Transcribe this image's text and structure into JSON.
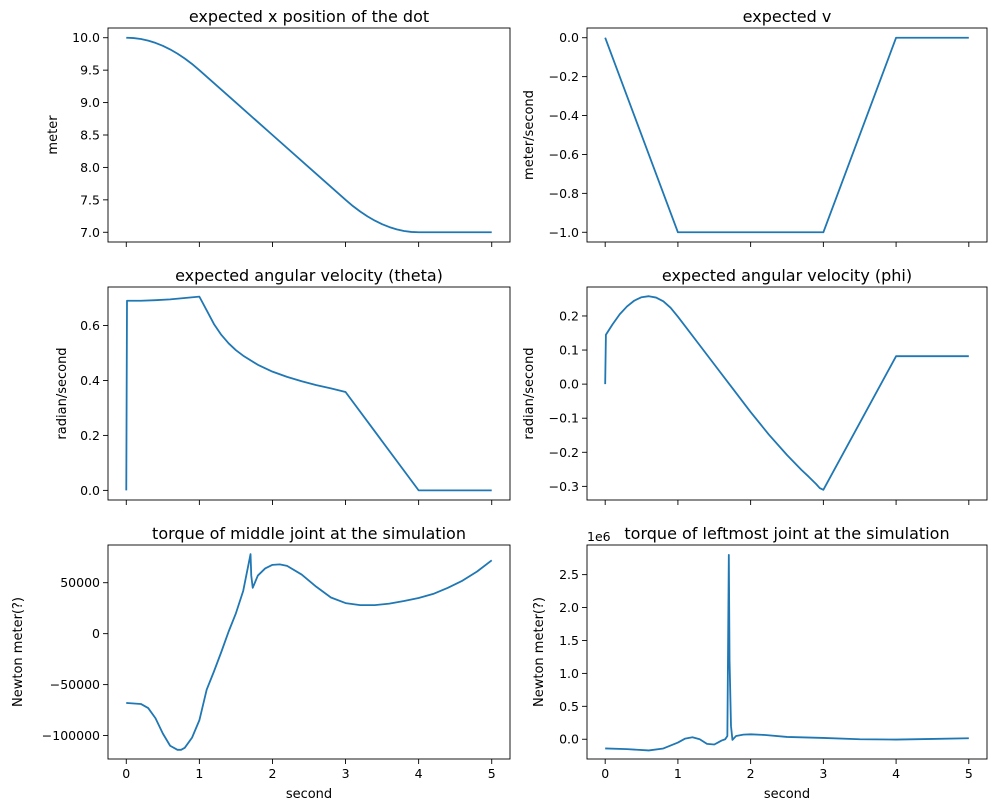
{
  "colors": {
    "series": "#1f77b4",
    "axes": "#000000",
    "background": "#ffffff"
  },
  "chart_data": [
    {
      "type": "line",
      "title": "expected x position of the dot",
      "xlabel": "",
      "ylabel": "meter",
      "xlim": [
        -0.25,
        5.25
      ],
      "ylim": [
        6.85,
        10.15
      ],
      "xticks": [
        0,
        1,
        2,
        3,
        4,
        5
      ],
      "xtick_labels_shown": false,
      "yticks": [
        7.0,
        7.5,
        8.0,
        8.5,
        9.0,
        9.5,
        10.0
      ],
      "ytick_labels": [
        "7.0",
        "7.5",
        "8.0",
        "8.5",
        "9.0",
        "9.5",
        "10.0"
      ],
      "grid": false,
      "series": [
        {
          "x": [
            0,
            0.1,
            0.2,
            0.3,
            0.4,
            0.5,
            0.6,
            0.7,
            0.8,
            0.9,
            1.0,
            1.5,
            2.0,
            2.5,
            3.0,
            3.1,
            3.2,
            3.3,
            3.4,
            3.5,
            3.6,
            3.7,
            3.8,
            3.9,
            4.0,
            4.5,
            5.0
          ],
          "y": [
            10.0,
            9.995,
            9.98,
            9.955,
            9.92,
            9.875,
            9.82,
            9.755,
            9.68,
            9.595,
            9.5,
            9.0,
            8.5,
            8.0,
            7.5,
            7.405,
            7.32,
            7.245,
            7.18,
            7.125,
            7.08,
            7.045,
            7.02,
            7.005,
            7.0,
            7.0,
            7.0
          ]
        }
      ]
    },
    {
      "type": "line",
      "title": "expected v",
      "xlabel": "",
      "ylabel": "meter/second",
      "xlim": [
        -0.25,
        5.25
      ],
      "ylim": [
        -1.05,
        0.05
      ],
      "xticks": [
        0,
        1,
        2,
        3,
        4,
        5
      ],
      "xtick_labels_shown": false,
      "yticks": [
        -1.0,
        -0.8,
        -0.6,
        -0.4,
        -0.2,
        0.0
      ],
      "ytick_labels": [
        "−1.0",
        "−0.8",
        "−0.6",
        "−0.4",
        "−0.2",
        "0.0"
      ],
      "grid": false,
      "series": [
        {
          "x": [
            0,
            1,
            3,
            4,
            5
          ],
          "y": [
            0.0,
            -1.0,
            -1.0,
            0.0,
            0.0
          ]
        }
      ]
    },
    {
      "type": "line",
      "title": "expected angular velocity (theta)",
      "xlabel": "",
      "ylabel": "radian/second",
      "xlim": [
        -0.25,
        5.25
      ],
      "ylim": [
        -0.035,
        0.74
      ],
      "xticks": [
        0,
        1,
        2,
        3,
        4,
        5
      ],
      "xtick_labels_shown": false,
      "yticks": [
        0.0,
        0.2,
        0.4,
        0.6
      ],
      "ytick_labels": [
        "0.0",
        "0.2",
        "0.4",
        "0.6"
      ],
      "grid": false,
      "series": [
        {
          "x": [
            0,
            0.01,
            0.2,
            0.4,
            0.6,
            0.8,
            1.0,
            1.1,
            1.2,
            1.3,
            1.4,
            1.5,
            1.6,
            1.8,
            2.0,
            2.2,
            2.4,
            2.6,
            2.8,
            3.0,
            4.0,
            5.0
          ],
          "y": [
            0.0,
            0.69,
            0.69,
            0.692,
            0.695,
            0.7,
            0.705,
            0.655,
            0.605,
            0.566,
            0.535,
            0.51,
            0.49,
            0.457,
            0.432,
            0.413,
            0.397,
            0.383,
            0.371,
            0.358,
            0.0,
            0.0
          ]
        }
      ]
    },
    {
      "type": "line",
      "title": "expected angular velocity (phi)",
      "xlabel": "",
      "ylabel": "radian/second",
      "xlim": [
        -0.25,
        5.25
      ],
      "ylim": [
        -0.34,
        0.285
      ],
      "xticks": [
        0,
        1,
        2,
        3,
        4,
        5
      ],
      "xtick_labels_shown": false,
      "yticks": [
        -0.3,
        -0.2,
        -0.1,
        0.0,
        0.1,
        0.2
      ],
      "ytick_labels": [
        "−0.3",
        "−0.2",
        "−0.1",
        "0.0",
        "0.1",
        "0.2"
      ],
      "grid": false,
      "series": [
        {
          "x": [
            0,
            0.01,
            0.1,
            0.2,
            0.3,
            0.4,
            0.5,
            0.6,
            0.7,
            0.8,
            0.9,
            1.0,
            1.25,
            1.5,
            1.75,
            2.0,
            2.25,
            2.5,
            2.6,
            2.7,
            2.8,
            2.9,
            2.95,
            3.0,
            4.0,
            5.0
          ],
          "y": [
            0.0,
            0.145,
            0.175,
            0.205,
            0.228,
            0.245,
            0.255,
            0.258,
            0.254,
            0.243,
            0.224,
            0.198,
            0.128,
            0.058,
            -0.012,
            -0.082,
            -0.148,
            -0.208,
            -0.23,
            -0.252,
            -0.272,
            -0.293,
            -0.305,
            -0.31,
            0.082,
            0.082
          ]
        }
      ]
    },
    {
      "type": "line",
      "title": "torque of middle joint at the simulation",
      "xlabel": "second",
      "ylabel": "Newton meter(?)",
      "xlim": [
        -0.25,
        5.25
      ],
      "ylim": [
        -123000,
        87000
      ],
      "xticks": [
        0,
        1,
        2,
        3,
        4,
        5
      ],
      "xtick_labels": [
        "0",
        "1",
        "2",
        "3",
        "4",
        "5"
      ],
      "yticks": [
        -100000,
        -50000,
        0,
        50000
      ],
      "ytick_labels": [
        "−100000",
        "−50000",
        "0",
        "50000"
      ],
      "grid": false,
      "series": [
        {
          "x": [
            0,
            0.2,
            0.3,
            0.4,
            0.5,
            0.6,
            0.7,
            0.75,
            0.8,
            0.9,
            1.0,
            1.1,
            1.2,
            1.3,
            1.4,
            1.5,
            1.6,
            1.7,
            1.71,
            1.73,
            1.8,
            1.9,
            2.0,
            2.1,
            2.2,
            2.4,
            2.6,
            2.8,
            3.0,
            3.2,
            3.4,
            3.6,
            3.8,
            4.0,
            4.2,
            4.4,
            4.6,
            4.8,
            5.0
          ],
          "y": [
            -68000,
            -69000,
            -73000,
            -83000,
            -98000,
            -110000,
            -114000,
            -114000,
            -112000,
            -102000,
            -85000,
            -55000,
            -37000,
            -18000,
            2000,
            20000,
            42000,
            78000,
            57000,
            45000,
            57000,
            64000,
            67500,
            68000,
            66500,
            58000,
            46000,
            35500,
            30000,
            28000,
            28000,
            29500,
            32000,
            35000,
            39000,
            45000,
            52000,
            61000,
            72000
          ]
        }
      ]
    },
    {
      "type": "line",
      "title": "torque of leftmost joint at the simulation",
      "xlabel": "second",
      "ylabel": "Newton meter(?)",
      "offset_text": "1e6",
      "xlim": [
        -0.25,
        5.25
      ],
      "ylim": [
        -0.3,
        2.95
      ],
      "xticks": [
        0,
        1,
        2,
        3,
        4,
        5
      ],
      "xtick_labels": [
        "0",
        "1",
        "2",
        "3",
        "4",
        "5"
      ],
      "yticks": [
        0.0,
        0.5,
        1.0,
        1.5,
        2.0,
        2.5
      ],
      "ytick_labels": [
        "0.0",
        "0.5",
        "1.0",
        "1.5",
        "2.0",
        "2.5"
      ],
      "grid": false,
      "series": [
        {
          "x": [
            0,
            0.3,
            0.6,
            0.8,
            1.0,
            1.1,
            1.2,
            1.3,
            1.4,
            1.5,
            1.55,
            1.6,
            1.65,
            1.68,
            1.7,
            1.71,
            1.73,
            1.75,
            1.8,
            1.9,
            2.0,
            2.2,
            2.5,
            3.0,
            3.5,
            4.0,
            4.5,
            5.0
          ],
          "y": [
            -0.14,
            -0.15,
            -0.17,
            -0.14,
            -0.05,
            0.01,
            0.03,
            0.0,
            -0.07,
            -0.08,
            -0.05,
            -0.02,
            0.0,
            0.05,
            2.8,
            1.2,
            0.2,
            -0.01,
            0.05,
            0.07,
            0.075,
            0.065,
            0.035,
            0.02,
            0.0,
            -0.005,
            0.005,
            0.015
          ]
        }
      ]
    }
  ]
}
